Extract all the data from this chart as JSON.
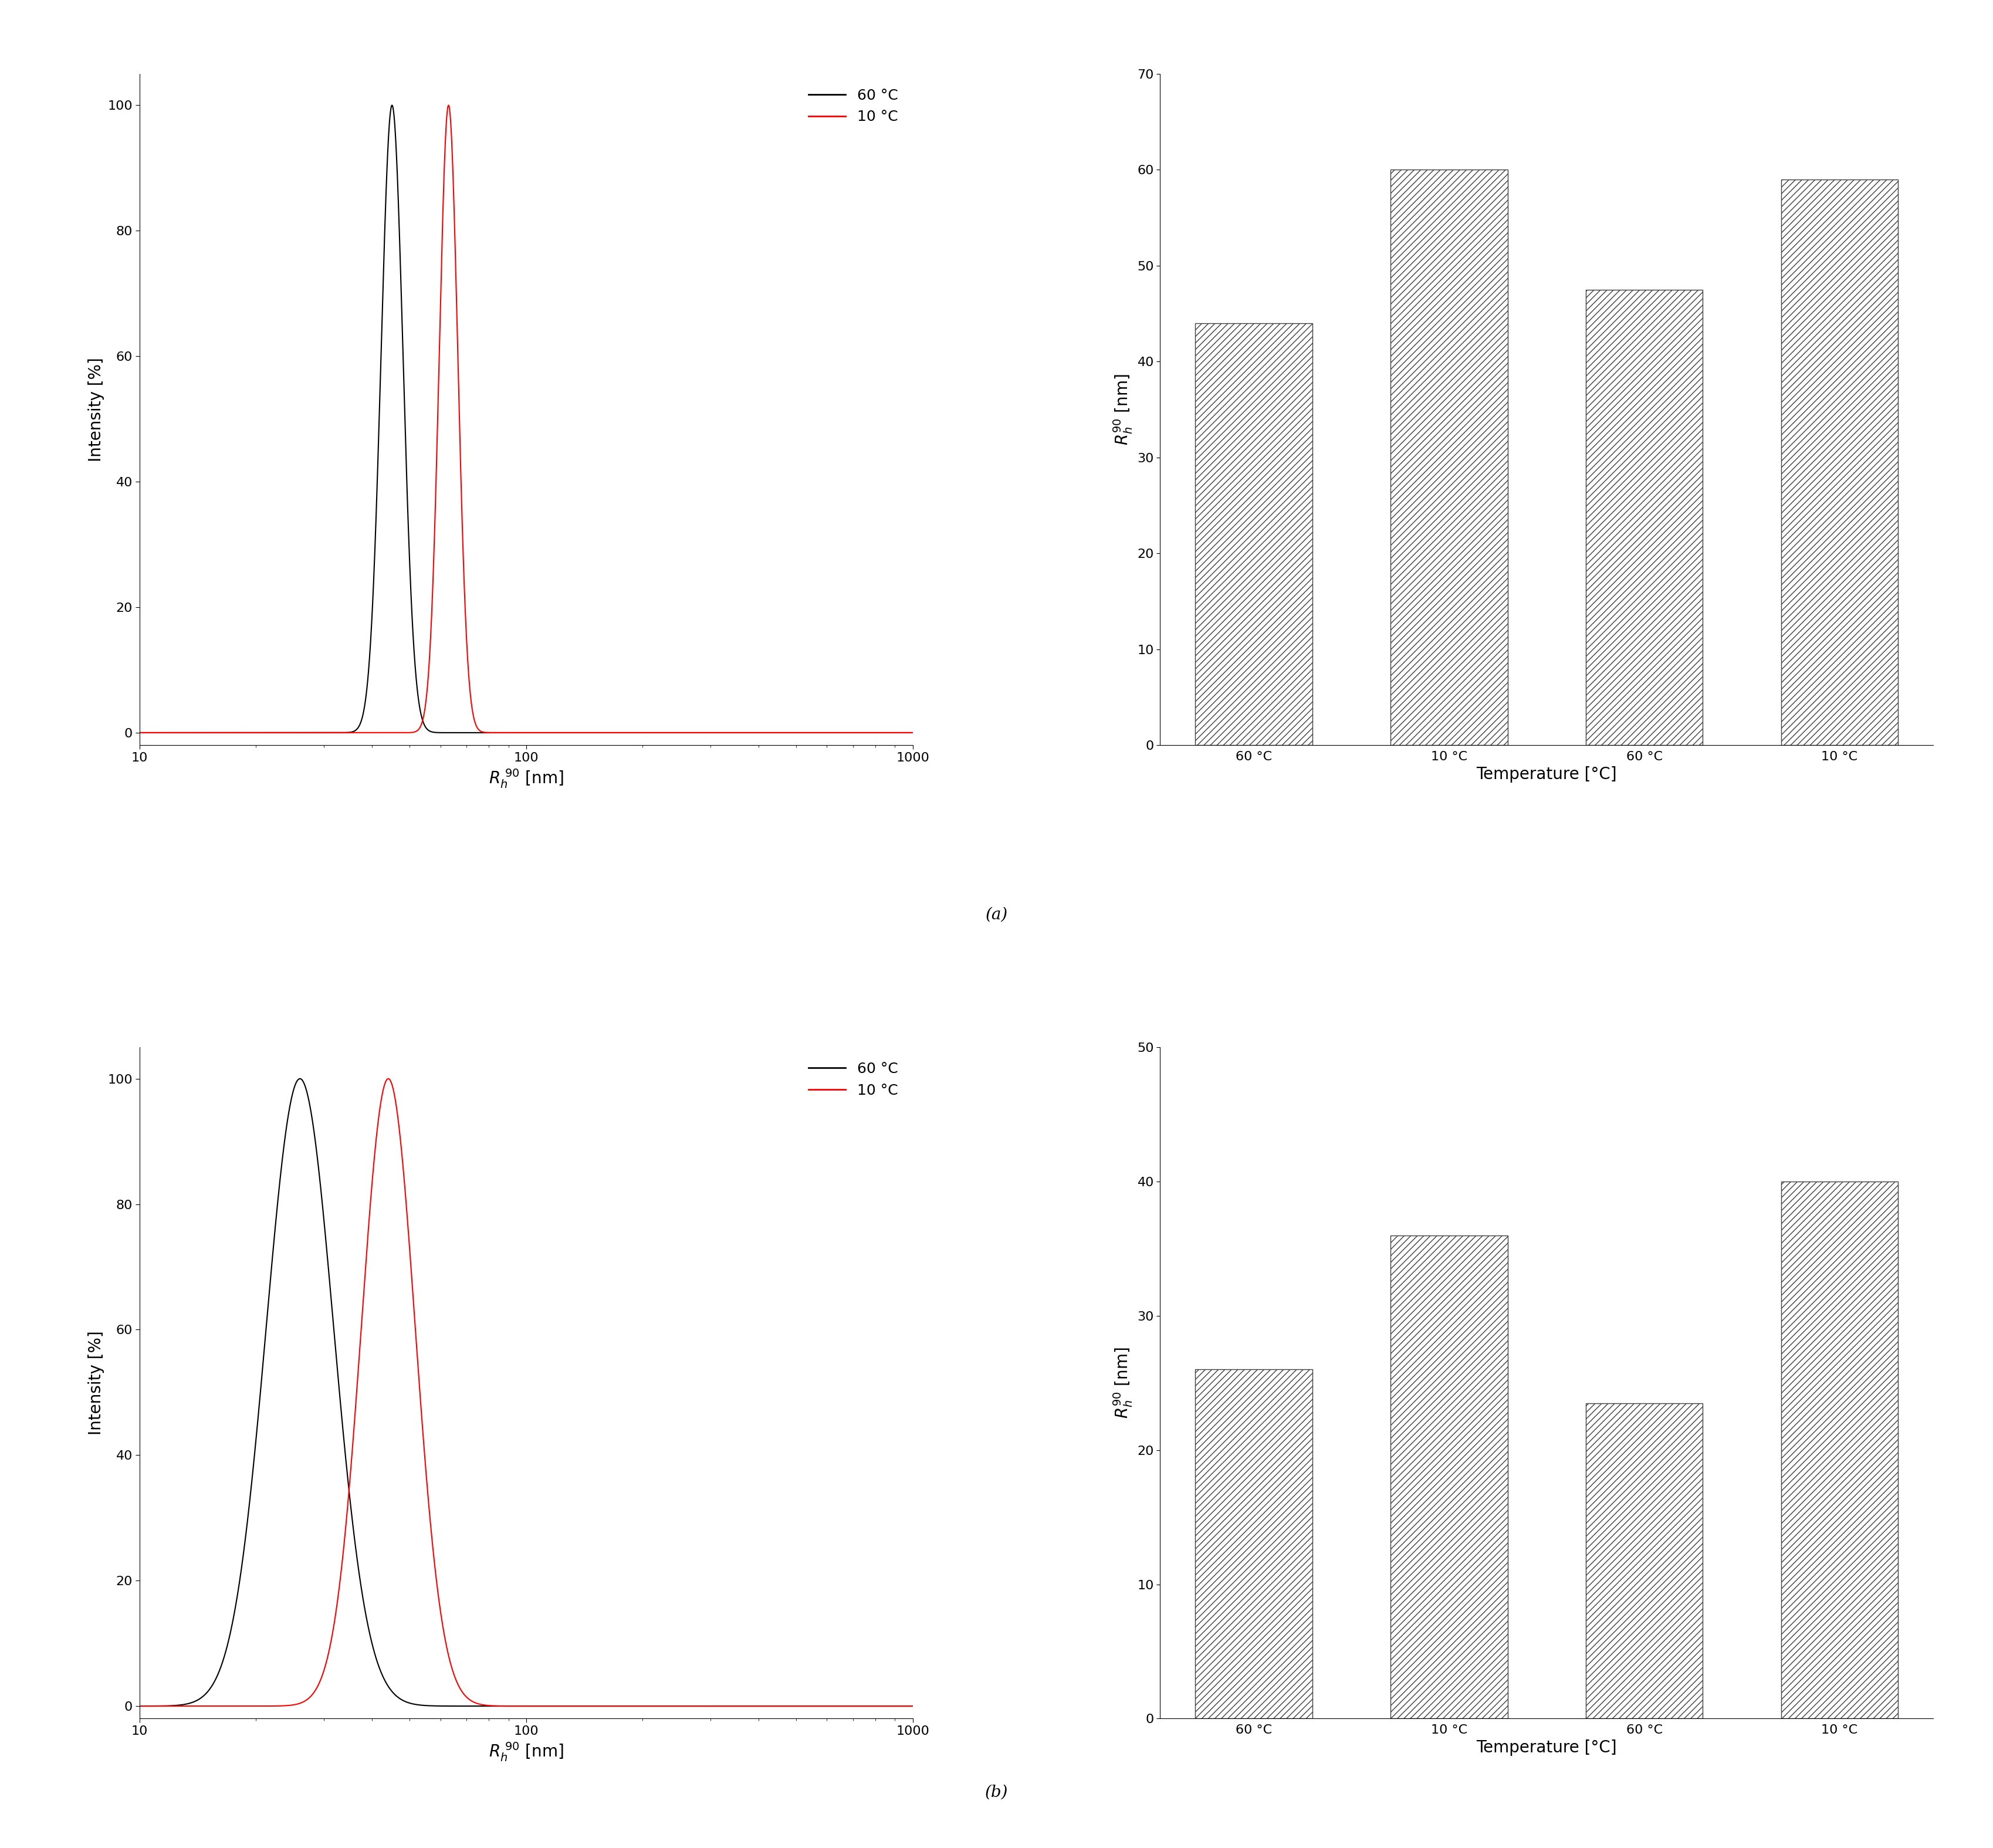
{
  "panel_a_left": {
    "black_peak": 45,
    "black_sigma": 0.065,
    "red_peak": 63,
    "red_sigma": 0.055,
    "xmin": 10,
    "xmax": 1000,
    "ymin": -2,
    "ymax": 105,
    "yticks": [
      0,
      20,
      40,
      60,
      80,
      100
    ],
    "xlabel": "$R_h^{\\  90}$ [nm]",
    "ylabel": "Intensity [%]",
    "legend_60": "60 °C",
    "legend_10": "10 °C"
  },
  "panel_a_right": {
    "categories": [
      "60 °C",
      "10 °C",
      "60 °C",
      "10 °C"
    ],
    "values": [
      44,
      60,
      47.5,
      59
    ],
    "ymin": 0,
    "ymax": 70,
    "yticks": [
      0,
      10,
      20,
      30,
      40,
      50,
      60,
      70
    ],
    "xlabel": "Temperature [°C]",
    "ylabel": "$R_h^{90}$ [nm]"
  },
  "panel_b_left": {
    "black_peak": 26,
    "black_sigma": 0.2,
    "red_peak": 44,
    "red_sigma": 0.16,
    "xmin": 10,
    "xmax": 1000,
    "ymin": -2,
    "ymax": 105,
    "yticks": [
      0,
      20,
      40,
      60,
      80,
      100
    ],
    "xlabel": "$R_h^{\\  90}$ [nm]",
    "ylabel": "Intensity [%]",
    "legend_60": "60 °C",
    "legend_10": "10 °C"
  },
  "panel_b_right": {
    "categories": [
      "60 °C",
      "10 °C",
      "60 °C",
      "10 °C"
    ],
    "values": [
      26,
      36,
      23.5,
      40
    ],
    "ymin": 0,
    "ymax": 50,
    "yticks": [
      0,
      10,
      20,
      30,
      40,
      50
    ],
    "xlabel": "Temperature [°C]",
    "ylabel": "$R_h^{90}$ [nm]"
  },
  "label_a": "(a)",
  "label_b": "(b)",
  "background_color": "#ffffff",
  "bar_color": "#ffffff",
  "bar_edgecolor": "#404040",
  "hatch": "///",
  "line_black": "#000000",
  "line_red": "#ff0000",
  "font_size": 18,
  "tick_font_size": 16,
  "label_font_size": 20,
  "panel_label_fontsize": 20
}
